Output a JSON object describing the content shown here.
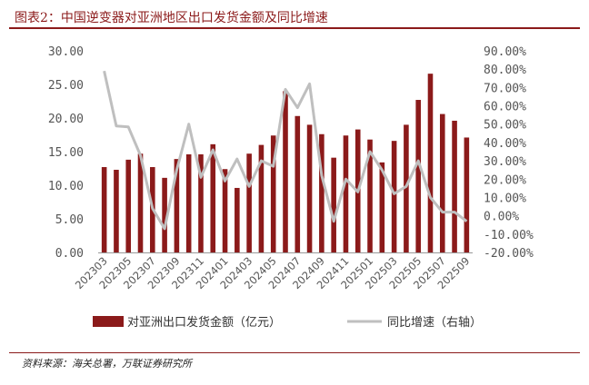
{
  "title": "图表2：中国逆变器对亚洲地区出口发货金额及同比增速",
  "source": "资料来源：海关总署，万联证券研究所",
  "colors": {
    "bar": "#8b1a1a",
    "line": "#bfbfbf",
    "accent": "#8b1a1a"
  },
  "chart_data": {
    "type": "bar",
    "categories": [
      "202303",
      "202304",
      "202305",
      "202306",
      "202307",
      "202308",
      "202309",
      "202310",
      "202311",
      "202312",
      "202401",
      "202402",
      "202403",
      "202404",
      "202405",
      "202406",
      "202407",
      "202408",
      "202409",
      "202410",
      "202411",
      "202412",
      "202501",
      "202502",
      "202503",
      "202504",
      "202505",
      "202506",
      "202507",
      "202508",
      "202509"
    ],
    "x_tick_labels": [
      "202303",
      "202305",
      "202307",
      "202309",
      "202311",
      "202401",
      "202403",
      "202405",
      "202407",
      "202409",
      "202411",
      "202501",
      "202503",
      "202505",
      "202507",
      "202509"
    ],
    "series": [
      {
        "name": "对亚洲出口发货金额（亿元）",
        "type": "bar",
        "axis": "left",
        "values": [
          12.7,
          12.3,
          13.8,
          14.7,
          12.7,
          11.1,
          13.9,
          14.6,
          14.6,
          16.1,
          12.4,
          9.6,
          14.7,
          16.0,
          17.4,
          24.0,
          20.3,
          19.0,
          17.6,
          14.1,
          17.4,
          18.3,
          16.8,
          13.4,
          16.6,
          19.0,
          22.7,
          26.6,
          20.6,
          19.6,
          17.1
        ]
      },
      {
        "name": "同比增速（右轴）",
        "type": "line",
        "axis": "right",
        "values": [
          79,
          49,
          48.5,
          33,
          4,
          -7,
          25,
          50,
          21,
          36,
          19,
          31,
          16,
          30,
          27,
          69,
          59,
          72,
          22,
          -3,
          20,
          13,
          35,
          25,
          12,
          16,
          30,
          10,
          2,
          2,
          -3
        ]
      }
    ],
    "y_left": {
      "ylim": [
        0,
        30
      ],
      "ticks": [
        "30.00",
        "25.00",
        "20.00",
        "15.00",
        "10.00",
        "5.00",
        "0.00"
      ],
      "tick_values": [
        30,
        25,
        20,
        15,
        10,
        5,
        0
      ]
    },
    "y_right": {
      "ylim": [
        -20,
        90
      ],
      "ticks": [
        "90.00%",
        "80.00%",
        "70.00%",
        "60.00%",
        "50.00%",
        "40.00%",
        "30.00%",
        "20.00%",
        "10.00%",
        "0.00%",
        "-10.00%",
        "-20.00%"
      ],
      "tick_values": [
        90,
        80,
        70,
        60,
        50,
        40,
        30,
        20,
        10,
        0,
        -10,
        -20
      ]
    },
    "legend": [
      {
        "label": "对亚洲出口发货金额（亿元）",
        "kind": "bar"
      },
      {
        "label": "同比增速（右轴）",
        "kind": "line"
      }
    ],
    "legend_position": "bottom",
    "grid": false
  }
}
